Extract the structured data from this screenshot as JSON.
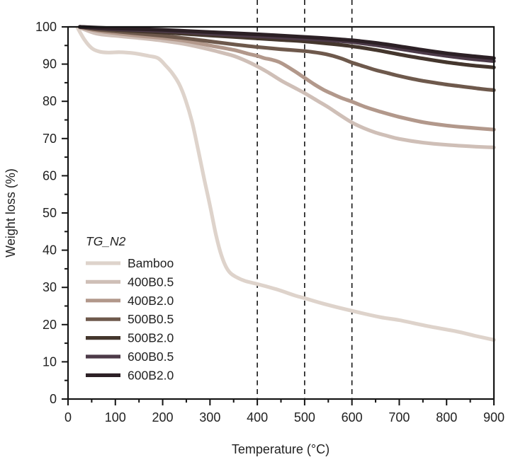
{
  "chart_data": {
    "type": "line",
    "title": "",
    "xlabel": "Temperature (°C)",
    "ylabel": "Weight loss (%)",
    "xlim": [
      0,
      900
    ],
    "ylim": [
      0,
      100
    ],
    "x_tick_major": 100,
    "x_tick_minor": 50,
    "y_tick_major": 10,
    "y_tick_minor": 5,
    "grid": false,
    "legend_title": "TG_N2",
    "legend_position": "center-left",
    "reference_lines_x": [
      400,
      500,
      600
    ],
    "axis_color": "#141414",
    "text_color": "#222222",
    "background_color": "#ffffff",
    "series": [
      {
        "name": "Bamboo",
        "color": "#ded3cb",
        "points": [
          [
            20,
            99.8
          ],
          [
            35,
            96.5
          ],
          [
            50,
            94.3
          ],
          [
            65,
            93.4
          ],
          [
            85,
            93.1
          ],
          [
            110,
            93.2
          ],
          [
            140,
            92.9
          ],
          [
            170,
            92.2
          ],
          [
            190,
            91.6
          ],
          [
            205,
            89.8
          ],
          [
            220,
            87.6
          ],
          [
            235,
            84.6
          ],
          [
            248,
            80.5
          ],
          [
            262,
            74.5
          ],
          [
            275,
            67.0
          ],
          [
            288,
            59.0
          ],
          [
            300,
            52.0
          ],
          [
            312,
            44.5
          ],
          [
            322,
            39.5
          ],
          [
            332,
            36.0
          ],
          [
            342,
            34.0
          ],
          [
            355,
            32.8
          ],
          [
            375,
            31.7
          ],
          [
            400,
            30.9
          ],
          [
            440,
            29.5
          ],
          [
            480,
            27.8
          ],
          [
            500,
            27.1
          ],
          [
            540,
            25.6
          ],
          [
            600,
            23.7
          ],
          [
            660,
            22.0
          ],
          [
            700,
            21.2
          ],
          [
            760,
            19.6
          ],
          [
            820,
            18.2
          ],
          [
            860,
            17.0
          ],
          [
            900,
            15.9
          ]
        ]
      },
      {
        "name": "400B0.5",
        "color": "#cfbfb7",
        "points": [
          [
            25,
            99.8
          ],
          [
            60,
            98.2
          ],
          [
            100,
            97.6
          ],
          [
            150,
            97.0
          ],
          [
            200,
            96.3
          ],
          [
            250,
            95.3
          ],
          [
            300,
            93.9
          ],
          [
            330,
            92.9
          ],
          [
            350,
            92.2
          ],
          [
            370,
            91.2
          ],
          [
            400,
            89.4
          ],
          [
            425,
            87.6
          ],
          [
            450,
            85.6
          ],
          [
            475,
            83.9
          ],
          [
            500,
            82.2
          ],
          [
            525,
            80.3
          ],
          [
            550,
            78.4
          ],
          [
            575,
            76.3
          ],
          [
            600,
            74.3
          ],
          [
            625,
            72.8
          ],
          [
            650,
            71.6
          ],
          [
            675,
            70.7
          ],
          [
            700,
            69.9
          ],
          [
            750,
            68.9
          ],
          [
            800,
            68.3
          ],
          [
            850,
            67.9
          ],
          [
            900,
            67.6
          ]
        ]
      },
      {
        "name": "400B2.0",
        "color": "#b2988b",
        "points": [
          [
            25,
            99.9
          ],
          [
            60,
            99.0
          ],
          [
            100,
            98.3
          ],
          [
            150,
            97.6
          ],
          [
            200,
            97.0
          ],
          [
            250,
            96.2
          ],
          [
            300,
            95.0
          ],
          [
            350,
            93.8
          ],
          [
            380,
            92.8
          ],
          [
            400,
            92.2
          ],
          [
            415,
            91.6
          ],
          [
            430,
            91.2
          ],
          [
            445,
            90.6
          ],
          [
            460,
            89.6
          ],
          [
            480,
            88.0
          ],
          [
            500,
            86.3
          ],
          [
            520,
            84.6
          ],
          [
            540,
            83.1
          ],
          [
            560,
            81.9
          ],
          [
            580,
            80.8
          ],
          [
            600,
            79.9
          ],
          [
            630,
            78.4
          ],
          [
            660,
            77.2
          ],
          [
            700,
            75.8
          ],
          [
            750,
            74.4
          ],
          [
            800,
            73.5
          ],
          [
            850,
            72.9
          ],
          [
            900,
            72.4
          ]
        ]
      },
      {
        "name": "500B0.5",
        "color": "#6e594c",
        "points": [
          [
            25,
            100.0
          ],
          [
            60,
            99.3
          ],
          [
            100,
            98.8
          ],
          [
            150,
            98.2
          ],
          [
            200,
            97.6
          ],
          [
            250,
            96.9
          ],
          [
            300,
            96.1
          ],
          [
            350,
            95.3
          ],
          [
            400,
            94.6
          ],
          [
            450,
            94.0
          ],
          [
            500,
            93.5
          ],
          [
            520,
            93.2
          ],
          [
            540,
            92.8
          ],
          [
            560,
            92.2
          ],
          [
            580,
            91.4
          ],
          [
            600,
            90.4
          ],
          [
            625,
            89.4
          ],
          [
            650,
            88.4
          ],
          [
            675,
            87.6
          ],
          [
            700,
            86.8
          ],
          [
            725,
            86.1
          ],
          [
            750,
            85.5
          ],
          [
            775,
            85.0
          ],
          [
            800,
            84.5
          ],
          [
            825,
            84.1
          ],
          [
            850,
            83.7
          ],
          [
            875,
            83.3
          ],
          [
            900,
            83.0
          ]
        ]
      },
      {
        "name": "500B2.0",
        "color": "#44362d",
        "points": [
          [
            25,
            100.0
          ],
          [
            100,
            99.2
          ],
          [
            200,
            98.5
          ],
          [
            300,
            97.7
          ],
          [
            400,
            96.9
          ],
          [
            450,
            96.5
          ],
          [
            500,
            96.1
          ],
          [
            550,
            95.5
          ],
          [
            600,
            94.8
          ],
          [
            650,
            93.8
          ],
          [
            700,
            92.6
          ],
          [
            750,
            91.5
          ],
          [
            800,
            90.5
          ],
          [
            850,
            89.7
          ],
          [
            900,
            89.1
          ]
        ]
      },
      {
        "name": "600B0.5",
        "color": "#4c3a48",
        "points": [
          [
            25,
            100.0
          ],
          [
            100,
            99.4
          ],
          [
            200,
            98.9
          ],
          [
            300,
            98.2
          ],
          [
            400,
            97.5
          ],
          [
            500,
            96.8
          ],
          [
            550,
            96.4
          ],
          [
            600,
            95.9
          ],
          [
            650,
            95.1
          ],
          [
            700,
            94.1
          ],
          [
            750,
            93.1
          ],
          [
            800,
            92.2
          ],
          [
            850,
            91.4
          ],
          [
            900,
            90.8
          ]
        ]
      },
      {
        "name": "600B2.0",
        "color": "#2c2025",
        "points": [
          [
            25,
            100.0
          ],
          [
            100,
            99.6
          ],
          [
            200,
            99.2
          ],
          [
            300,
            98.6
          ],
          [
            400,
            98.0
          ],
          [
            500,
            97.3
          ],
          [
            550,
            96.9
          ],
          [
            600,
            96.4
          ],
          [
            650,
            95.7
          ],
          [
            700,
            94.8
          ],
          [
            750,
            93.8
          ],
          [
            800,
            92.9
          ],
          [
            850,
            92.2
          ],
          [
            900,
            91.6
          ]
        ]
      }
    ]
  }
}
